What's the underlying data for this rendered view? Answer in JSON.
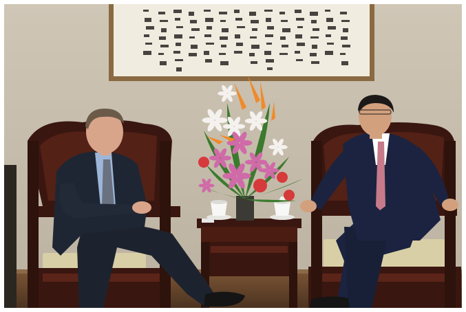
{
  "photo": {
    "subject": "",
    "colors": {
      "wall": "#c9c0b0",
      "wall_shadow": "#b3a998",
      "floor": "#6b4a2e",
      "wood_dark": "#3a1610",
      "wood_mid": "#5a2418",
      "cushion": "#d9cfa6",
      "suit_left": "#1f2633",
      "suit_right": "#1b2340",
      "shirt_left": "#9db6d8",
      "shirt_right": "#ffffff",
      "tie_right": "#c77a8a",
      "scroll_frame": "#8a6a42",
      "scroll_paper": "#f1ece0",
      "ink": "#2a2622",
      "lily": "#d06aa8",
      "rose": "#d63a3a",
      "bird_of_paradise": "#f08a2a",
      "leaf": "#3c7a2e",
      "cup": "#f7f7f5"
    }
  }
}
